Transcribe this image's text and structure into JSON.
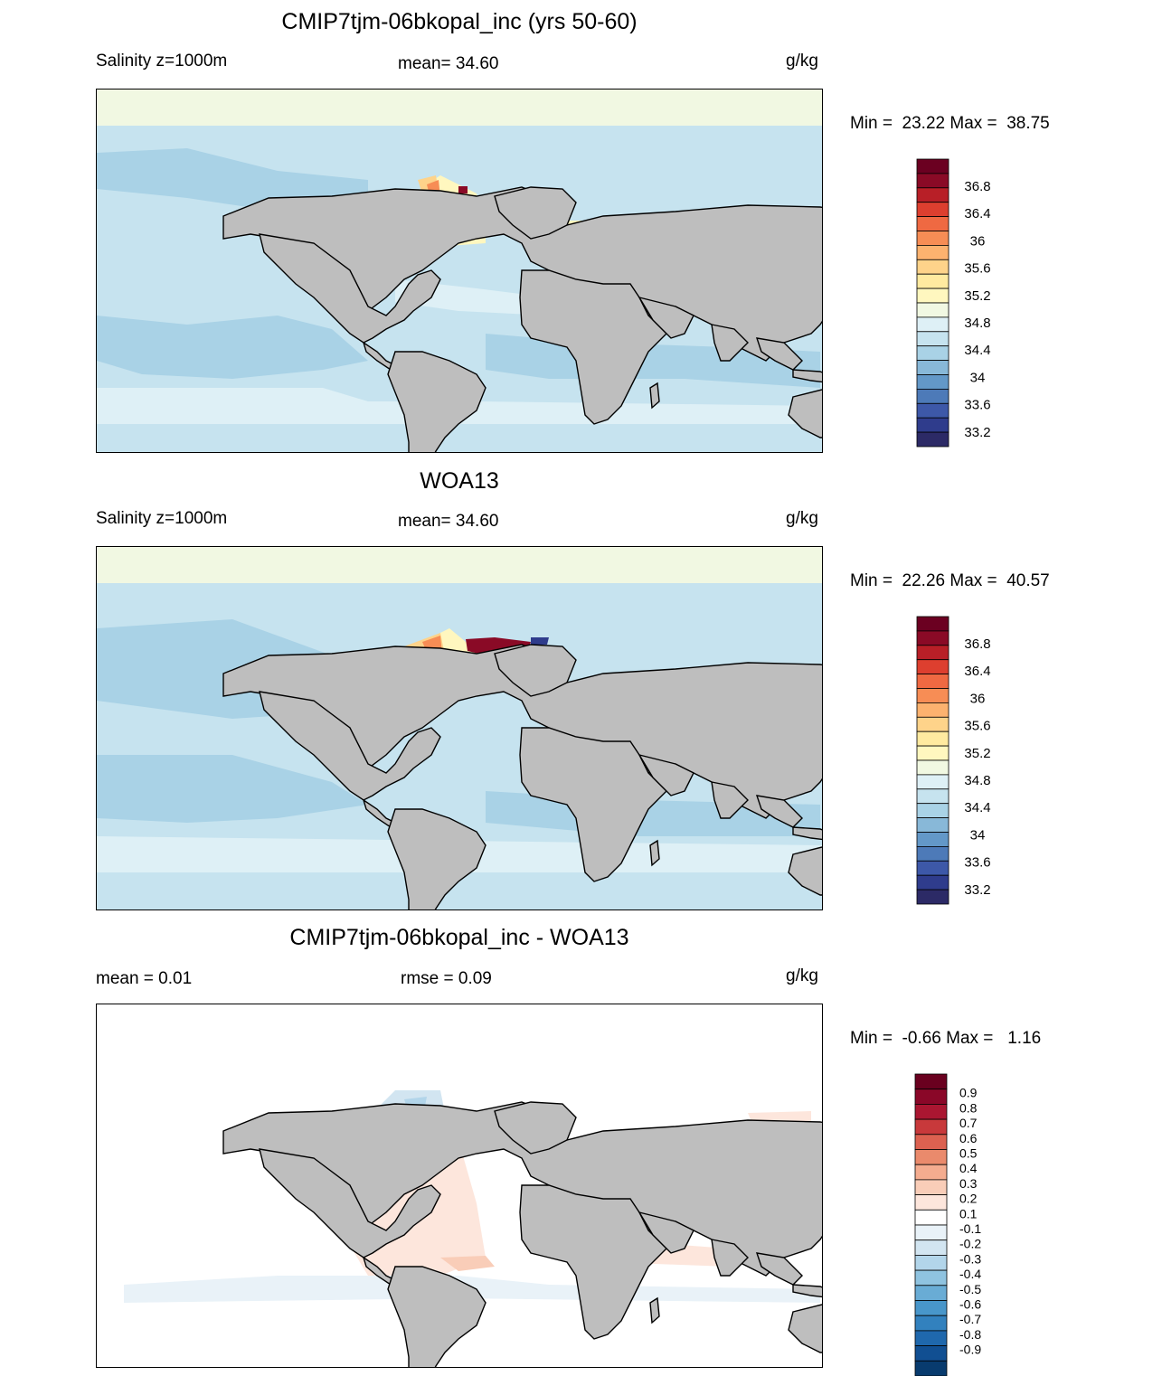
{
  "colors": {
    "land": "#bebebe",
    "coast": "#000000",
    "main_scale": [
      "#2c2a66",
      "#2f3c8c",
      "#3d58a8",
      "#4d7ab8",
      "#6398c8",
      "#88b8d8",
      "#a9d2e6",
      "#c6e3ef",
      "#def0f6",
      "#f1f8e2",
      "#fff7bf",
      "#ffeaa0",
      "#fed38a",
      "#fcb26f",
      "#f78d55",
      "#ef6942",
      "#dd3f2f",
      "#b81f27",
      "#8a0a26",
      "#6b0021"
    ],
    "diff_scale": [
      "#083b6e",
      "#114f92",
      "#1f68ad",
      "#3281be",
      "#4896ca",
      "#69acd5",
      "#8fc3e0",
      "#b2d5ea",
      "#d2e5f1",
      "#e9f2f8",
      "#ffffff",
      "#fde6dc",
      "#f9cdb8",
      "#f4ac8f",
      "#ea8a6c",
      "#dc6150",
      "#c8393b",
      "#aa1631",
      "#8a0728",
      "#6a001f"
    ]
  },
  "panels": [
    {
      "title": "CMIP7tjm-06bkopal_inc (yrs 50-60)",
      "left_label": "Salinity z=1000m",
      "center_label": "mean=  34.60",
      "units": "g/kg",
      "minmax": "Min =  23.22 Max =  38.75",
      "scale": "main"
    },
    {
      "title": "WOA13",
      "left_label": "Salinity z=1000m",
      "center_label": "mean=  34.60",
      "units": "g/kg",
      "minmax": "Min =  22.26 Max =  40.57",
      "scale": "main"
    },
    {
      "title": "CMIP7tjm-06bkopal_inc - WOA13",
      "left_label": "mean =   0.01",
      "center_label": "rmse =   0.09",
      "units": "g/kg",
      "minmax": "Min =  -0.66 Max =   1.16",
      "scale": "diff"
    }
  ],
  "colorbars": {
    "main_labels": [
      "36.8",
      "36.4",
      "36",
      "35.6",
      "35.2",
      "34.8",
      "34.4",
      "34",
      "33.6",
      "33.2"
    ],
    "diff_labels": [
      "0.9",
      "0.8",
      "0.7",
      "0.6",
      "0.5",
      "0.4",
      "0.3",
      "0.2",
      "0.1",
      "-0.1",
      "-0.2",
      "-0.3",
      "-0.4",
      "-0.5",
      "-0.6",
      "-0.7",
      "-0.8",
      "-0.9"
    ]
  }
}
